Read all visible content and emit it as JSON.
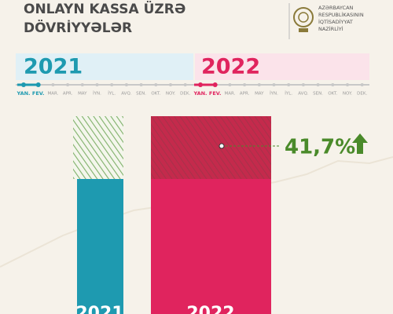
{
  "header": {
    "title_lines": [
      "ONLAYN KASSA ÜZRƏ",
      "DÖVRİYYƏLƏR"
    ],
    "ministry_lines": [
      "AZƏRBAYCAN",
      "RESPUBLİKASININ",
      "İQTİSADİYYAT",
      "NAZİRLİYİ"
    ]
  },
  "timeline": {
    "years": [
      "2021",
      "2022"
    ],
    "months": [
      "YAN.",
      "FEV.",
      "MAR.",
      "APR.",
      "MAY",
      "İYN.",
      "İYL.",
      "AVQ.",
      "SEN.",
      "OKT.",
      "NOY.",
      "DEK."
    ]
  },
  "growth": "41,7%",
  "bars": [
    "2021",
    "2022"
  ]
}
